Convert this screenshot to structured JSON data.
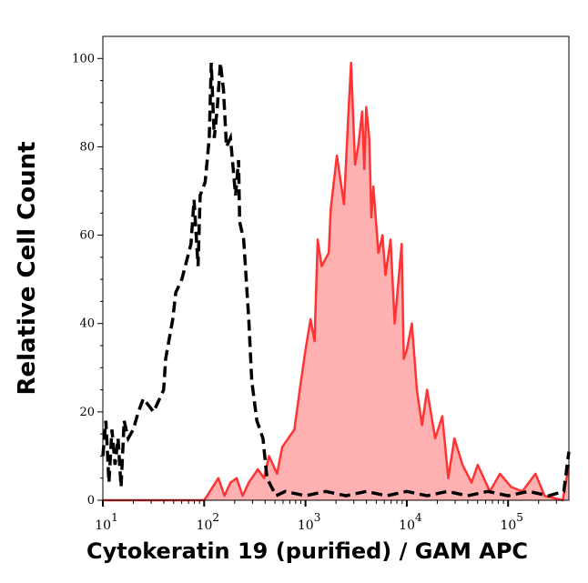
{
  "chart_data": {
    "type": "area",
    "title": "",
    "xlabel": "Cytokeratin 19 (purified) / GAM APC",
    "ylabel": "Relative Cell Count",
    "xscale": "log",
    "xlim_log10": [
      1,
      5.6
    ],
    "ylim": [
      0,
      105
    ],
    "yticks": [
      0,
      20,
      40,
      60,
      80,
      100
    ],
    "xticks": [
      {
        "base": "10",
        "exp": "1"
      },
      {
        "base": "10",
        "exp": "2"
      },
      {
        "base": "10",
        "exp": "3"
      },
      {
        "base": "10",
        "exp": "4"
      },
      {
        "base": "10",
        "exp": "5"
      }
    ],
    "grid": false,
    "legend": "none",
    "series": [
      {
        "style": "dashed-black-line",
        "color": "#000000",
        "x_log10": [
          1.0,
          1.03,
          1.06,
          1.09,
          1.12,
          1.15,
          1.18,
          1.21,
          1.25,
          1.3,
          1.35,
          1.4,
          1.5,
          1.6,
          1.62,
          1.69,
          1.72,
          1.78,
          1.87,
          1.9,
          1.94,
          1.96,
          2.01,
          2.05,
          2.07,
          2.1,
          2.13,
          2.16,
          2.19,
          2.22,
          2.26,
          2.31,
          2.34,
          2.35,
          2.39,
          2.41,
          2.44,
          2.47,
          2.52,
          2.58,
          2.62,
          2.71,
          2.8,
          3.0,
          3.2,
          3.4,
          3.6,
          3.8,
          4.0,
          4.2,
          4.4,
          4.6,
          4.8,
          5.0,
          5.2,
          5.4,
          5.55,
          5.6
        ],
        "y": [
          10,
          18,
          4,
          16,
          8,
          14,
          3,
          18,
          14,
          16,
          20,
          23,
          20,
          25,
          32,
          41,
          47,
          50,
          58,
          68,
          53,
          69,
          72,
          82,
          99,
          82,
          89,
          99,
          93,
          80,
          82,
          69,
          77,
          63,
          59,
          52,
          41,
          27,
          18,
          14,
          5,
          1,
          2,
          1,
          2,
          1,
          2,
          1,
          2,
          1,
          2,
          1,
          2,
          1,
          2,
          1,
          2,
          11
        ]
      },
      {
        "style": "filled-red",
        "color": "#ff3333",
        "fill": "#ffb0b0",
        "x_log10": [
          1.0,
          1.5,
          2.0,
          2.03,
          2.14,
          2.2,
          2.26,
          2.32,
          2.38,
          2.44,
          2.53,
          2.59,
          2.64,
          2.72,
          2.77,
          2.89,
          2.95,
          3.0,
          3.05,
          3.09,
          3.12,
          3.16,
          3.23,
          3.25,
          3.31,
          3.38,
          3.42,
          3.45,
          3.49,
          3.52,
          3.56,
          3.58,
          3.6,
          3.63,
          3.65,
          3.67,
          3.72,
          3.76,
          3.79,
          3.84,
          3.88,
          3.95,
          3.97,
          4.0,
          4.05,
          4.1,
          4.15,
          4.2,
          4.28,
          4.35,
          4.41,
          4.47,
          4.55,
          4.64,
          4.7,
          4.82,
          4.92,
          5.03,
          5.14,
          5.27,
          5.36,
          5.54,
          5.6
        ],
        "y": [
          0,
          0,
          0,
          1,
          5,
          1,
          4,
          5,
          1,
          4,
          7,
          5,
          10,
          6,
          12,
          16,
          26,
          34,
          41,
          36,
          59,
          53,
          56,
          66,
          78,
          67,
          86,
          99,
          76,
          80,
          88,
          75,
          89,
          82,
          64,
          71,
          56,
          60,
          51,
          59,
          40,
          58,
          32,
          34,
          40,
          25,
          17,
          25,
          14,
          19,
          5,
          14,
          8,
          4,
          8,
          2,
          6,
          3,
          2,
          6,
          1,
          0,
          8
        ]
      }
    ]
  }
}
